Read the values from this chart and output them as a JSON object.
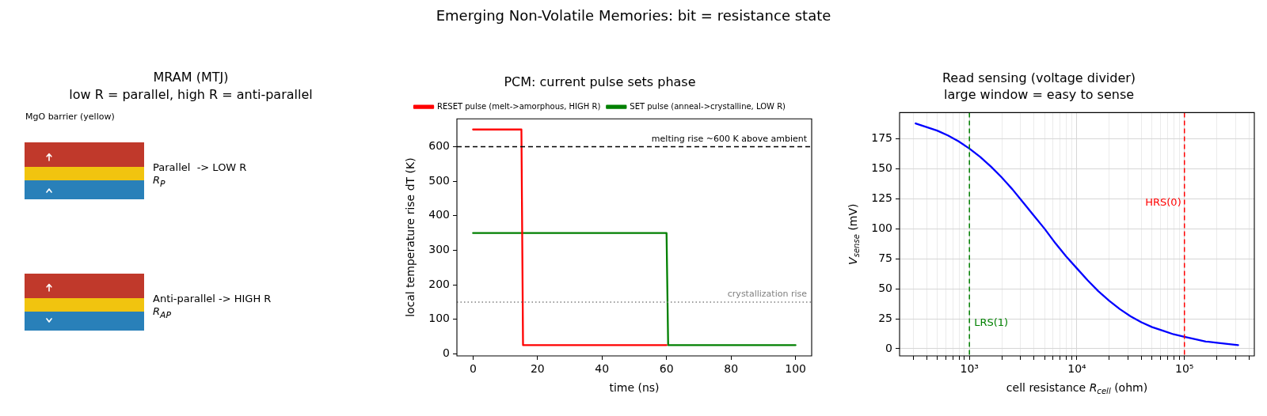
{
  "chart_data": [
    {
      "type": "other",
      "title": "Emerging Non-Volatile Memories: bit = resistance state"
    },
    {
      "type": "other",
      "title": "MRAM (MTJ)",
      "subtitle": "low R = parallel, high R = anti-parallel",
      "annotations": [
        "MgO barrier (yellow)",
        "Parallel  -> LOW R",
        "R$_{P}$",
        "Anti-parallel -> HIGH R",
        "R$_{AP}$"
      ]
    },
    {
      "type": "line",
      "title": "PCM: current pulse sets phase",
      "xlabel": "time (ns)",
      "ylabel": "local temperature rise dT (K)",
      "series": [
        {
          "name": "RESET pulse (melt->amorphous, HIGH R)",
          "color": "#ff0000",
          "x": [
            0,
            15,
            15.5,
            60
          ],
          "values": [
            650,
            650,
            25,
            25
          ]
        },
        {
          "name": "SET pulse (anneal->crystalline, LOW R)",
          "color": "#008000",
          "x": [
            0,
            60,
            60.5,
            100
          ],
          "values": [
            350,
            350,
            25,
            25
          ]
        }
      ],
      "xlim": [
        -5,
        105
      ],
      "xticks": [
        0,
        20,
        40,
        60,
        80,
        100
      ],
      "ylim": [
        -6,
        681
      ],
      "yticks": [
        0,
        100,
        200,
        300,
        400,
        500,
        600
      ],
      "ref_lines": [
        {
          "axis": "y",
          "value": 600,
          "label": "melting rise ~600 K above ambient",
          "color": "#000000",
          "line_style": "dashed"
        },
        {
          "axis": "y",
          "value": 150,
          "label": "crystallization rise",
          "color": "#808080",
          "line_style": "dotted"
        }
      ],
      "legend": "top"
    },
    {
      "type": "line",
      "title": "Read sensing (voltage divider)",
      "subtitle": "large window = easy to sense",
      "xlabel": "cell resistance R$_{cell}$ (ohm)",
      "ylabel": "V$_{sense}$ (mV)",
      "series": [
        {
          "color": "#0000ff",
          "x": [
            316,
            398,
            501,
            631,
            794,
            1000,
            1259,
            1585,
            1995,
            2512,
            3162,
            3981,
            5012,
            6310,
            7943,
            10000,
            12600,
            15800,
            20000,
            25100,
            31600,
            39800,
            50100,
            63100,
            79400,
            100000,
            126000,
            158000,
            200000,
            251000,
            316000
          ],
          "values": [
            188,
            185,
            182,
            178,
            173,
            167,
            160,
            152,
            143,
            133,
            122,
            111,
            100,
            88,
            77,
            67,
            57,
            48,
            40,
            33,
            27,
            22,
            18,
            15,
            12,
            10,
            8,
            6,
            5,
            4,
            3
          ]
        }
      ],
      "xlim": [
        224,
        447000
      ],
      "xticks": [
        {
          "value": 300,
          "label": null
        },
        {
          "value": 400,
          "label": null
        },
        {
          "value": 500,
          "label": null
        },
        {
          "value": 600,
          "label": null
        },
        {
          "value": 700,
          "label": null
        },
        {
          "value": 800,
          "label": null
        },
        {
          "value": 900,
          "label": null
        },
        {
          "value": 1000,
          "label": "10³"
        },
        {
          "value": 2000,
          "label": null
        },
        {
          "value": 3000,
          "label": null
        },
        {
          "value": 4000,
          "label": null
        },
        {
          "value": 5000,
          "label": null
        },
        {
          "value": 6000,
          "label": null
        },
        {
          "value": 7000,
          "label": null
        },
        {
          "value": 8000,
          "label": null
        },
        {
          "value": 9000,
          "label": null
        },
        {
          "value": 10000,
          "label": "10⁴"
        },
        {
          "value": 20000,
          "label": null
        },
        {
          "value": 30000,
          "label": null
        },
        {
          "value": 40000,
          "label": null
        },
        {
          "value": 50000,
          "label": null
        },
        {
          "value": 60000,
          "label": null
        },
        {
          "value": 70000,
          "label": null
        },
        {
          "value": 80000,
          "label": null
        },
        {
          "value": 90000,
          "label": null
        },
        {
          "value": 100000,
          "label": "10⁵"
        },
        {
          "value": 200000,
          "label": null
        },
        {
          "value": 300000,
          "label": null
        },
        {
          "value": 400000,
          "label": null
        }
      ],
      "ylim": [
        -6,
        197
      ],
      "yticks": [
        0,
        25,
        50,
        75,
        100,
        125,
        150,
        175
      ],
      "log": "x",
      "grid": true,
      "ref_lines": [
        {
          "axis": "x",
          "value": 1000,
          "label": "LRS(1)",
          "color": "#008000",
          "line_style": "dashed"
        },
        {
          "axis": "x",
          "value": 100000,
          "label": "HRS(0)",
          "color": "#ff0000",
          "line_style": "dashed"
        }
      ]
    }
  ]
}
